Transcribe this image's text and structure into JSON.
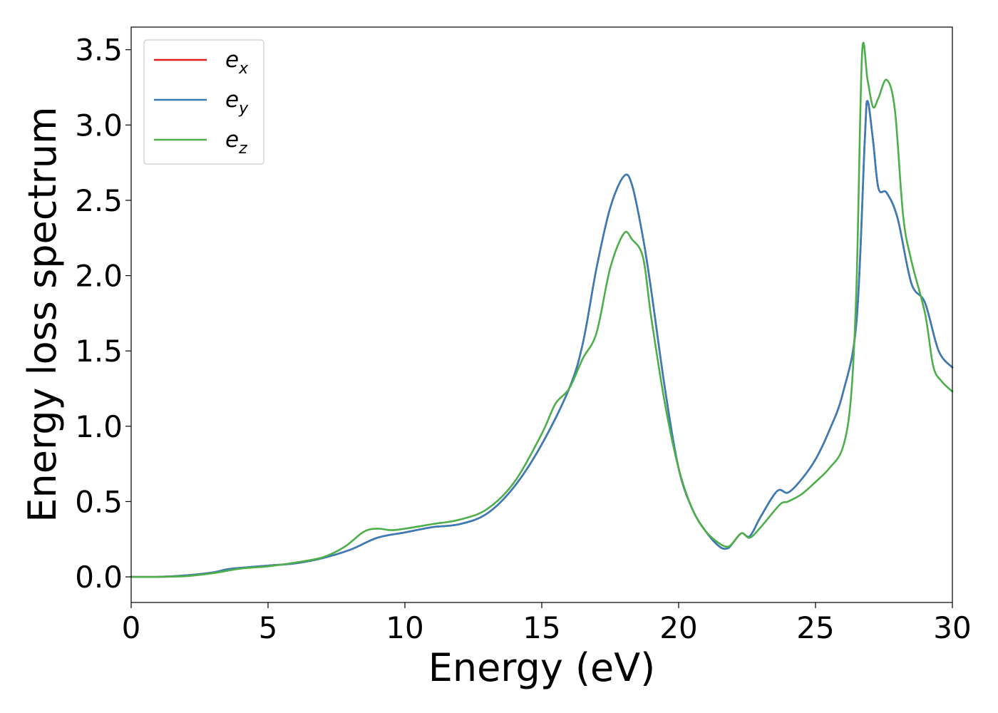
{
  "chart_data": {
    "type": "line",
    "xlabel": "Energy (eV)",
    "ylabel": "Energy loss spectrum",
    "xlim": [
      0,
      30
    ],
    "ylim": [
      -0.17,
      3.65
    ],
    "xticks": [
      0,
      5,
      10,
      15,
      20,
      25,
      30
    ],
    "xtick_labels": [
      "0",
      "5",
      "10",
      "15",
      "20",
      "25",
      "30"
    ],
    "yticks": [
      0.0,
      0.5,
      1.0,
      1.5,
      2.0,
      2.5,
      3.0,
      3.5
    ],
    "ytick_labels": [
      "0.0",
      "0.5",
      "1.0",
      "1.5",
      "2.0",
      "2.5",
      "3.0",
      "3.5"
    ],
    "grid": false,
    "legend_position": "top-left",
    "series": [
      {
        "name": "e_x",
        "label_main": "e",
        "label_sub": "x",
        "color": "#e41a1c",
        "points": [
          [
            0,
            0
          ],
          [
            1,
            0
          ],
          [
            2,
            0.01
          ],
          [
            3,
            0.03
          ],
          [
            3.5,
            0.05
          ],
          [
            4,
            0.06
          ],
          [
            5,
            0.075
          ],
          [
            6,
            0.09
          ],
          [
            7,
            0.125
          ],
          [
            8,
            0.18
          ],
          [
            9,
            0.26
          ],
          [
            10,
            0.295
          ],
          [
            11,
            0.33
          ],
          [
            12,
            0.35
          ],
          [
            13,
            0.42
          ],
          [
            14,
            0.6
          ],
          [
            15,
            0.88
          ],
          [
            16,
            1.25
          ],
          [
            16.5,
            1.55
          ],
          [
            17,
            2.05
          ],
          [
            17.5,
            2.45
          ],
          [
            18,
            2.66
          ],
          [
            18.3,
            2.6
          ],
          [
            18.7,
            2.25
          ],
          [
            19,
            1.9
          ],
          [
            19.5,
            1.25
          ],
          [
            20,
            0.72
          ],
          [
            20.5,
            0.45
          ],
          [
            21,
            0.3
          ],
          [
            21.5,
            0.2
          ],
          [
            21.8,
            0.19
          ],
          [
            22,
            0.23
          ],
          [
            22.3,
            0.29
          ],
          [
            22.6,
            0.27
          ],
          [
            23,
            0.4
          ],
          [
            23.6,
            0.57
          ],
          [
            24,
            0.56
          ],
          [
            24.5,
            0.65
          ],
          [
            25,
            0.78
          ],
          [
            25.5,
            0.97
          ],
          [
            26,
            1.22
          ],
          [
            26.5,
            1.7
          ],
          [
            26.8,
            2.9
          ],
          [
            26.9,
            3.16
          ],
          [
            27.1,
            2.9
          ],
          [
            27.3,
            2.58
          ],
          [
            27.6,
            2.55
          ],
          [
            28,
            2.38
          ],
          [
            28.5,
            1.95
          ],
          [
            29,
            1.82
          ],
          [
            29.5,
            1.5
          ],
          [
            30,
            1.39
          ]
        ]
      },
      {
        "name": "e_y",
        "label_main": "e",
        "label_sub": "y",
        "color": "#377eb8",
        "points": [
          [
            0,
            0
          ],
          [
            1,
            0
          ],
          [
            2,
            0.01
          ],
          [
            3,
            0.03
          ],
          [
            3.5,
            0.05
          ],
          [
            4,
            0.06
          ],
          [
            5,
            0.075
          ],
          [
            6,
            0.09
          ],
          [
            7,
            0.125
          ],
          [
            8,
            0.18
          ],
          [
            9,
            0.26
          ],
          [
            10,
            0.295
          ],
          [
            11,
            0.33
          ],
          [
            12,
            0.35
          ],
          [
            13,
            0.42
          ],
          [
            14,
            0.6
          ],
          [
            15,
            0.88
          ],
          [
            16,
            1.25
          ],
          [
            16.5,
            1.55
          ],
          [
            17,
            2.05
          ],
          [
            17.5,
            2.45
          ],
          [
            18,
            2.66
          ],
          [
            18.3,
            2.6
          ],
          [
            18.7,
            2.25
          ],
          [
            19,
            1.9
          ],
          [
            19.5,
            1.25
          ],
          [
            20,
            0.72
          ],
          [
            20.5,
            0.45
          ],
          [
            21,
            0.3
          ],
          [
            21.5,
            0.2
          ],
          [
            21.8,
            0.19
          ],
          [
            22,
            0.23
          ],
          [
            22.3,
            0.29
          ],
          [
            22.6,
            0.27
          ],
          [
            23,
            0.4
          ],
          [
            23.6,
            0.57
          ],
          [
            24,
            0.56
          ],
          [
            24.5,
            0.65
          ],
          [
            25,
            0.78
          ],
          [
            25.5,
            0.97
          ],
          [
            26,
            1.22
          ],
          [
            26.5,
            1.7
          ],
          [
            26.8,
            2.9
          ],
          [
            26.9,
            3.16
          ],
          [
            27.1,
            2.9
          ],
          [
            27.3,
            2.58
          ],
          [
            27.6,
            2.55
          ],
          [
            28,
            2.38
          ],
          [
            28.5,
            1.95
          ],
          [
            29,
            1.82
          ],
          [
            29.5,
            1.5
          ],
          [
            30,
            1.39
          ]
        ]
      },
      {
        "name": "e_z",
        "label_main": "e",
        "label_sub": "z",
        "color": "#4daf4a",
        "points": [
          [
            0,
            0
          ],
          [
            1,
            0
          ],
          [
            2,
            0.005
          ],
          [
            3,
            0.025
          ],
          [
            4,
            0.055
          ],
          [
            5,
            0.07
          ],
          [
            6,
            0.095
          ],
          [
            7,
            0.13
          ],
          [
            7.8,
            0.2
          ],
          [
            8.5,
            0.3
          ],
          [
            9,
            0.32
          ],
          [
            9.5,
            0.31
          ],
          [
            10,
            0.32
          ],
          [
            11,
            0.35
          ],
          [
            12,
            0.38
          ],
          [
            13,
            0.45
          ],
          [
            14,
            0.63
          ],
          [
            15,
            0.95
          ],
          [
            15.5,
            1.15
          ],
          [
            16,
            1.25
          ],
          [
            16.5,
            1.45
          ],
          [
            17,
            1.62
          ],
          [
            17.5,
            2.05
          ],
          [
            18,
            2.28
          ],
          [
            18.3,
            2.24
          ],
          [
            18.7,
            2.12
          ],
          [
            19,
            1.72
          ],
          [
            19.5,
            1.15
          ],
          [
            20,
            0.72
          ],
          [
            20.5,
            0.45
          ],
          [
            21,
            0.3
          ],
          [
            21.5,
            0.22
          ],
          [
            21.8,
            0.2
          ],
          [
            22,
            0.23
          ],
          [
            22.3,
            0.29
          ],
          [
            22.6,
            0.26
          ],
          [
            23,
            0.33
          ],
          [
            23.7,
            0.48
          ],
          [
            24,
            0.5
          ],
          [
            24.5,
            0.55
          ],
          [
            25,
            0.63
          ],
          [
            25.5,
            0.72
          ],
          [
            26,
            0.86
          ],
          [
            26.3,
            1.2
          ],
          [
            26.5,
            1.95
          ],
          [
            26.7,
            3.47
          ],
          [
            26.9,
            3.3
          ],
          [
            27.1,
            3.12
          ],
          [
            27.3,
            3.18
          ],
          [
            27.6,
            3.3
          ],
          [
            27.9,
            3.1
          ],
          [
            28.2,
            2.4
          ],
          [
            28.5,
            2.1
          ],
          [
            29,
            1.75
          ],
          [
            29.3,
            1.4
          ],
          [
            29.6,
            1.3
          ],
          [
            30,
            1.23
          ]
        ]
      }
    ]
  }
}
